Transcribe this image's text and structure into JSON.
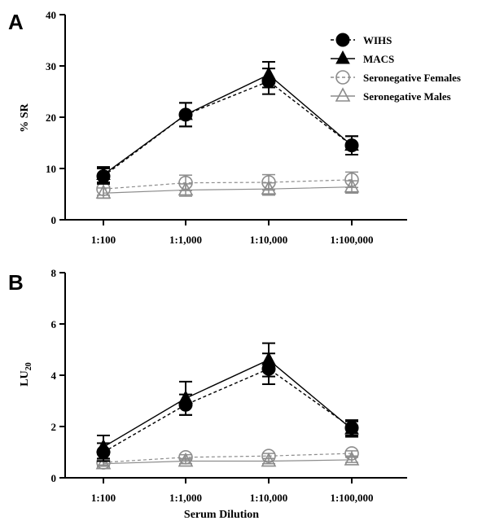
{
  "figure": {
    "x_axis_label": "Serum Dilution",
    "legend": [
      "WIHS",
      "MACS",
      "Seronegative Females",
      "Seronegative Males"
    ]
  },
  "colors": {
    "dark": "#000000",
    "gray": "#8c8c8c"
  },
  "chart_data": [
    {
      "panel_label": "A",
      "type": "line",
      "categories": [
        "1:100",
        "1:1,000",
        "1:10,000",
        "1:100,000"
      ],
      "ylabel": "% SR",
      "ylim": [
        0,
        40
      ],
      "yticks": [
        "0",
        "10",
        "20",
        "30",
        "40"
      ],
      "legend_position": "top-right",
      "series": [
        {
          "name": "WIHS",
          "marker": "filled-circle",
          "line": "dashed",
          "color": "#000000",
          "values": [
            8.5,
            20.5,
            27,
            14.5
          ],
          "errors": [
            1.5,
            2.3,
            2.5,
            1.8
          ]
        },
        {
          "name": "MACS",
          "marker": "filled-triangle",
          "line": "solid",
          "color": "#000000",
          "values": [
            8.8,
            20.5,
            28.3,
            14.5
          ],
          "errors": [
            1.5,
            2.3,
            2.5,
            1.8
          ]
        },
        {
          "name": "Seronegative Females",
          "marker": "open-circle",
          "line": "dashed",
          "color": "#8c8c8c",
          "values": [
            6,
            7.2,
            7.3,
            7.8
          ],
          "errors": [
            1.2,
            1.5,
            1.5,
            1.5
          ]
        },
        {
          "name": "Seronegative Males",
          "marker": "open-triangle",
          "line": "solid",
          "color": "#8c8c8c",
          "values": [
            5.2,
            5.8,
            6.0,
            6.4
          ],
          "errors": [
            1.0,
            1.2,
            1.2,
            1.2
          ]
        }
      ]
    },
    {
      "panel_label": "B",
      "type": "line",
      "categories": [
        "1:100",
        "1:1,000",
        "1:10,000",
        "1:100,000"
      ],
      "ylabel_main": "LU",
      "ylabel_sub": "20",
      "ylim": [
        0,
        8
      ],
      "yticks": [
        "0",
        "2",
        "4",
        "6",
        "8"
      ],
      "series": [
        {
          "name": "WIHS",
          "marker": "filled-circle",
          "line": "dashed",
          "color": "#000000",
          "values": [
            1.0,
            2.85,
            4.25,
            1.95
          ],
          "errors": [
            0.35,
            0.4,
            0.6,
            0.3
          ]
        },
        {
          "name": "MACS",
          "marker": "filled-triangle",
          "line": "solid",
          "color": "#000000",
          "values": [
            1.2,
            3.1,
            4.6,
            1.9
          ],
          "errors": [
            0.45,
            0.65,
            0.65,
            0.3
          ]
        },
        {
          "name": "Seronegative Females",
          "marker": "open-circle",
          "line": "dashed",
          "color": "#8c8c8c",
          "values": [
            0.6,
            0.8,
            0.85,
            0.95
          ],
          "errors": [
            0.1,
            0.1,
            0.1,
            0.1
          ]
        },
        {
          "name": "Seronegative Males",
          "marker": "open-triangle",
          "line": "solid",
          "color": "#8c8c8c",
          "values": [
            0.55,
            0.65,
            0.65,
            0.7
          ],
          "errors": [
            0.1,
            0.1,
            0.1,
            0.1
          ]
        }
      ]
    }
  ]
}
